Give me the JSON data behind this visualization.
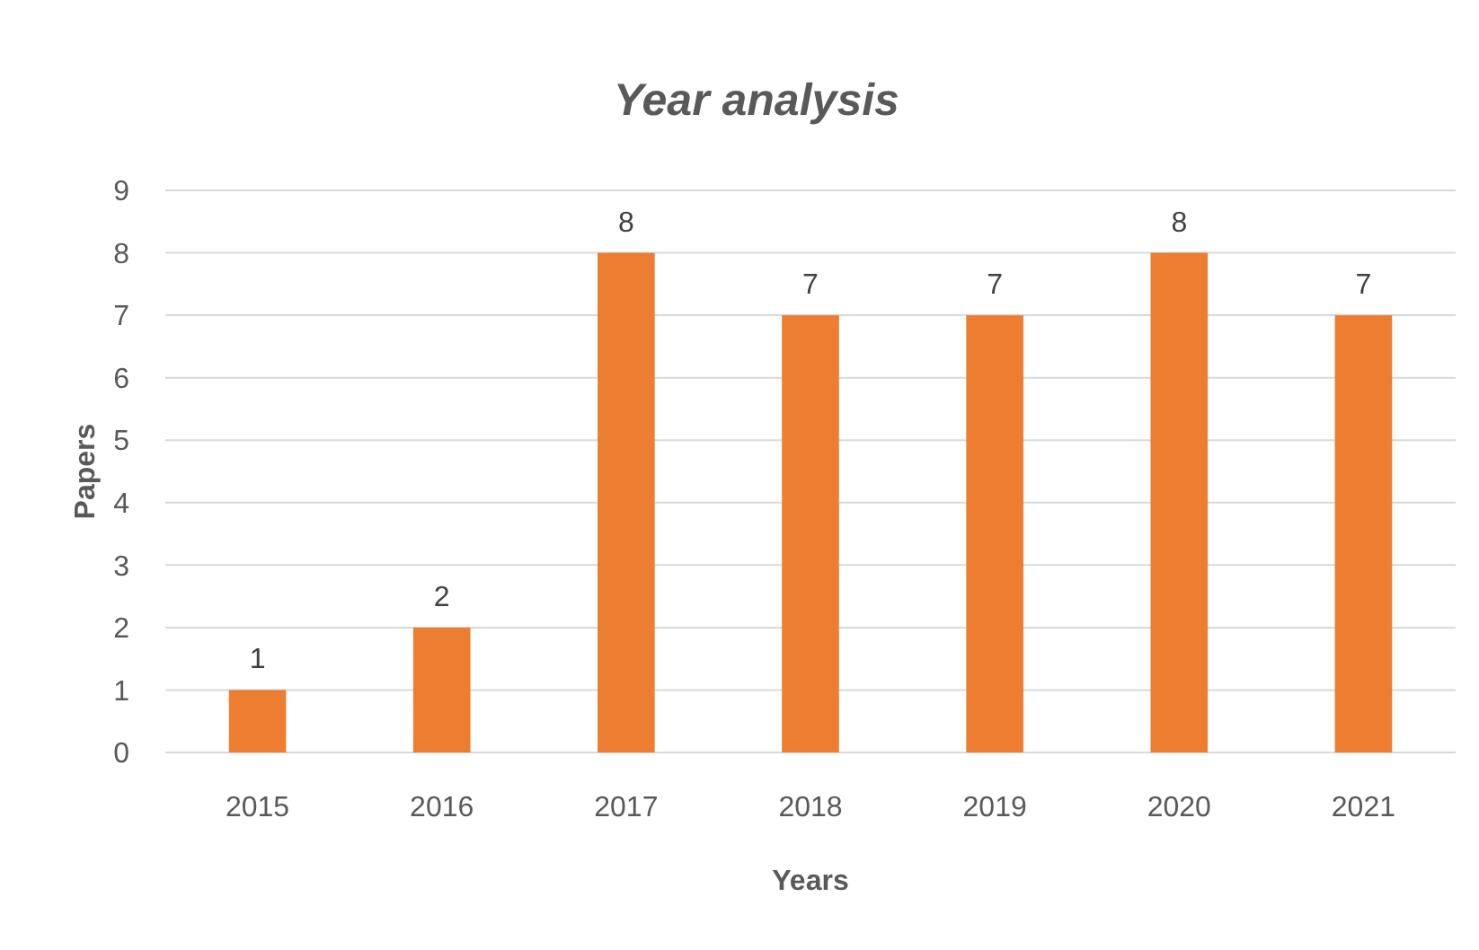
{
  "chart_data": {
    "type": "bar",
    "title": "Year analysis",
    "xlabel": "Years",
    "ylabel": "Papers",
    "categories": [
      "2015",
      "2016",
      "2017",
      "2018",
      "2019",
      "2020",
      "2021"
    ],
    "values": [
      1,
      2,
      8,
      7,
      7,
      8,
      7
    ],
    "color": "#ed7d31",
    "ylim": [
      0,
      9
    ],
    "yticks": [
      0,
      1,
      2,
      3,
      4,
      5,
      6,
      7,
      8,
      9
    ],
    "grid": "y",
    "data_labels": true
  }
}
